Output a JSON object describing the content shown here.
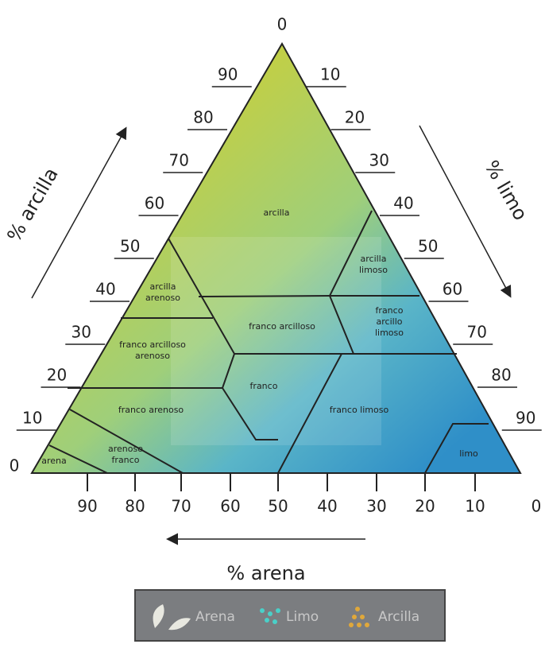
{
  "left_axis": {
    "label": "% arcilla",
    "ticks": [
      "0",
      "10",
      "20",
      "30",
      "40",
      "50",
      "60",
      "70",
      "80",
      "90"
    ]
  },
  "right_axis": {
    "label": "% limo",
    "ticks": [
      "0",
      "10",
      "20",
      "30",
      "40",
      "50",
      "60",
      "70",
      "80",
      "90"
    ]
  },
  "bottom_axis": {
    "label": "% arena",
    "ticks": [
      "90",
      "80",
      "70",
      "60",
      "50",
      "40",
      "30",
      "20",
      "10",
      "0"
    ]
  },
  "regions": [
    {
      "lines": [
        "arcilla"
      ]
    },
    {
      "lines": [
        "arcilla",
        "limoso"
      ]
    },
    {
      "lines": [
        "arcilla",
        "arenoso"
      ]
    },
    {
      "lines": [
        "franco arcilloso"
      ]
    },
    {
      "lines": [
        "franco",
        "arcillo",
        "limoso"
      ]
    },
    {
      "lines": [
        "franco arcilloso",
        "arenoso"
      ]
    },
    {
      "lines": [
        "franco"
      ]
    },
    {
      "lines": [
        "franco arenoso"
      ]
    },
    {
      "lines": [
        "franco limoso"
      ]
    },
    {
      "lines": [
        "arenoso",
        "franco"
      ]
    },
    {
      "lines": [
        "arena"
      ]
    },
    {
      "lines": [
        "limo"
      ]
    }
  ],
  "legend": [
    "Arena",
    "Limo",
    "Arcilla"
  ]
}
